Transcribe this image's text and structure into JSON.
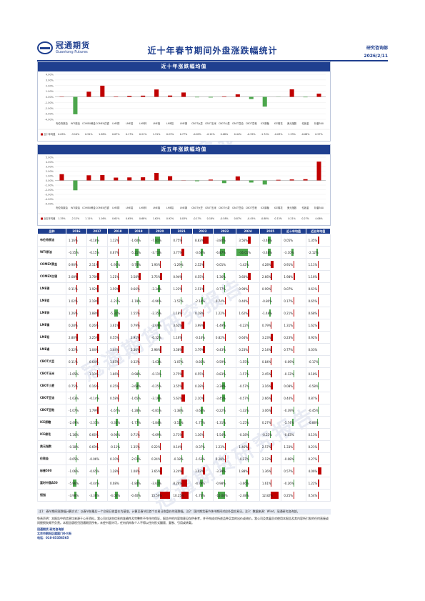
{
  "header": {
    "logo_cn": "冠通期货",
    "logo_en": "Guantong Futures",
    "title": "近十年春节期间外盘涨跌幅统计",
    "dept": "研究咨询部",
    "date": "2026/2/11"
  },
  "watermark": "冠通期货研究报告",
  "chart1": {
    "title": "近十年涨跌幅均值",
    "legend": "近十年均值"
  },
  "chart2": {
    "title": "近五年涨跌幅均值",
    "legend": "近五年均值"
  },
  "chart_data": [
    {
      "type": "bar",
      "title": "近十年涨跌幅均值",
      "ylim": [
        -4,
        4
      ],
      "yticks": [
        "4.00%",
        "3.00%",
        "2.00%",
        "1.00%",
        "0.00%",
        "-1.00%",
        "-2.00%",
        "-3.00%",
        "-4.00%"
      ],
      "categories": [
        "布伦特原油",
        "WTI原油",
        "COMEX黄金",
        "COMEX白银",
        "LME铜",
        "LME铝",
        "LME锌",
        "LME镍",
        "LME铅",
        "LME锡",
        "CBOT大豆",
        "CBOT玉米",
        "CBOT小麦",
        "CBOT豆油",
        "CBOT豆粕",
        "ICE原糖",
        "ICE棉花",
        "美元指数",
        "伦敦金",
        "标普500"
      ],
      "value_labels": [
        "0.05%",
        "-3.10%",
        "0.91%",
        "1.98%",
        "0.07%",
        "0.17%",
        "0.21%",
        "1.31%",
        "0.23%",
        "0.77%",
        "-0.09%",
        "-0.12%",
        "0.08%",
        "0.44%",
        "-0.39%",
        "-1.74%",
        "-0.03%",
        "1.33%",
        "-0.08%",
        "0.57%"
      ],
      "series": [
        {
          "name": "近十年均值",
          "values": [
            0.05,
            -3.1,
            0.91,
            1.98,
            0.07,
            0.17,
            0.21,
            1.31,
            0.23,
            0.77,
            -0.09,
            -0.12,
            0.08,
            0.44,
            -0.39,
            -1.74,
            -0.03,
            1.33,
            -0.08,
            0.57
          ]
        }
      ]
    },
    {
      "type": "bar",
      "title": "近五年涨跌幅均值",
      "ylim": [
        -5,
        5
      ],
      "yticks": [
        "5.00%",
        "4.00%",
        "3.00%",
        "2.00%",
        "1.00%",
        "0.00%",
        "-1.00%",
        "-2.00%",
        "-3.00%",
        "-4.00%",
        "-5.00%"
      ],
      "categories": [
        "布伦特原油",
        "WTI原油",
        "COMEX黄金",
        "COMEX白银",
        "LME铜",
        "LME铝",
        "LME锌",
        "LME镍",
        "LME铅",
        "LME锡",
        "CBOT大豆",
        "CBOT玉米",
        "CBOT小麦",
        "CBOT豆油",
        "CBOT豆粕",
        "ICE原糖",
        "ICE棉花",
        "美元指数",
        "伦敦金",
        "标普500"
      ],
      "value_labels": [
        "1.35%",
        "-2.12%",
        "1.11%",
        "1.16%",
        "0.61%",
        "0.65%",
        "0.68%",
        "1.62%",
        "0.92%",
        "0.03%",
        "-0.17%",
        "0.18%",
        "-0.58%",
        "0.87%",
        "-0.45%",
        "-0.88%",
        "0.13%",
        "0.21%",
        "0.27%",
        "4.06%"
      ],
      "series": [
        {
          "name": "近五年均值",
          "values": [
            1.35,
            -2.12,
            1.11,
            1.16,
            0.61,
            0.65,
            0.68,
            1.62,
            0.92,
            0.03,
            -0.17,
            0.18,
            -0.58,
            0.87,
            -0.45,
            -0.88,
            0.13,
            0.21,
            0.27,
            4.06
          ]
        }
      ]
    }
  ],
  "table": {
    "headers": [
      "品种",
      "2016",
      "2017",
      "2018",
      "2019",
      "2020",
      "2021",
      "2022",
      "2023",
      "2024",
      "2025",
      "近十年均值",
      "近五年均值"
    ],
    "rows": [
      {
        "label": "布伦特原油",
        "values": [
          1.16,
          -0.18,
          1.12,
          -1.6,
          -7.81,
          0.75,
          8.83,
          -3.8,
          3.56,
          -3.46,
          0.05,
          1.35
        ]
      },
      {
        "label": "WTI原油",
        "values": [
          -0.35,
          -0.15,
          0.67,
          -5.21,
          -3.71,
          3.77,
          -3.6,
          -6.87,
          -16.01,
          -3.46,
          -3.1,
          -2.12
        ]
      },
      {
        "label": "COMEX黄金",
        "values": [
          0.9,
          2.11,
          -1.93,
          -3.76,
          1.93,
          -1.29,
          2.52,
          -0.01,
          -1.42,
          4.28,
          0.91,
          1.11
        ]
      },
      {
        "label": "COMEX白银",
        "values": [
          2.08,
          3.78,
          1.21,
          3.58,
          3.75,
          0.94,
          0.55,
          -1.36,
          3.6,
          2.66,
          1.98,
          1.16
        ]
      },
      {
        "label": "LME铜",
        "values": [
          0.11,
          1.92,
          3.59,
          0.66,
          -3.34,
          1.22,
          2.51,
          -0.77,
          0.99,
          0.99,
          0.07,
          0.61
        ]
      },
      {
        "label": "LME铝",
        "values": [
          1.02,
          2.19,
          -1.21,
          -1.19,
          -0.96,
          -1.57,
          -2.1,
          0.74,
          0.44,
          -0.8,
          0.17,
          0.65
        ]
      },
      {
        "label": "LME锌",
        "values": [
          1.26,
          1.88,
          -5.31,
          1.55,
          -2.35,
          1.18,
          0.18,
          1.22,
          1.62,
          -1.48,
          0.21,
          0.68
        ]
      },
      {
        "label": "LME镍",
        "values": [
          0.28,
          0.26,
          3.61,
          0.79,
          -2.69,
          3.62,
          3.99,
          -1.49,
          -0.22,
          0.79,
          1.31,
          1.62
        ]
      },
      {
        "label": "LME铅",
        "values": [
          2.8,
          3.25,
          0.55,
          2.91,
          -0.32,
          1.16,
          -0.16,
          0.82,
          0.64,
          3.23,
          0.23,
          0.92
        ]
      },
      {
        "label": "LME锡",
        "values": [
          0.32,
          1.04,
          1.44,
          2.3,
          2.98,
          3.58,
          3.79,
          -0.43,
          0.23,
          2.14,
          0.77,
          0.03
        ]
      },
      {
        "label": "CBOT大豆",
        "values": [
          0.11,
          0.64,
          1.65,
          0.32,
          -1.63,
          -1.07,
          -0.85,
          -0.59,
          -1.55,
          0.84,
          -0.09,
          -0.17
        ]
      },
      {
        "label": "CBOT玉米",
        "values": [
          -1.65,
          1.1,
          1.66,
          -0.98,
          -0.11,
          2.75,
          0.55,
          -0.83,
          -1.57,
          2.45,
          -0.12,
          0.18
        ]
      },
      {
        "label": "CBOT小麦",
        "values": [
          0.75,
          0.16,
          0.35,
          -3.68,
          -0.25,
          3.55,
          0.28,
          -3.38,
          -0.57,
          3.16,
          0.08,
          -0.58
        ]
      },
      {
        "label": "CBOT豆油",
        "values": [
          -1.63,
          -0.14,
          0.58,
          -1.65,
          -3.19,
          5.63,
          2.1,
          -3.45,
          -0.57,
          2.66,
          0.44,
          0.87
        ]
      },
      {
        "label": "CBOT豆粕",
        "values": [
          -1.07,
          1.79,
          -1.67,
          -1.28,
          -0.81,
          -1.38,
          -3.63,
          -0.22,
          -1.32,
          3.06,
          -0.39,
          -0.45
        ]
      },
      {
        "label": "ICE原糖",
        "values": [
          -2.49,
          -2.31,
          -3.35,
          -1.77,
          -1.84,
          -3.51,
          -1.77,
          -1.31,
          -1.25,
          0.27,
          -1.74,
          -0.88
        ]
      },
      {
        "label": "ICE棉花",
        "values": [
          -1.16,
          0.66,
          -0.9,
          0.71,
          -0.69,
          2.71,
          1.16,
          -1.54,
          -0.18,
          -0.23,
          -0.03,
          0.13
        ]
      },
      {
        "label": "美元指数",
        "values": [
          -0.18,
          0.69,
          -0.11,
          1.35,
          0.22,
          0.14,
          -0.37,
          1.23,
          1.46,
          2.57,
          1.33,
          0.21
        ]
      },
      {
        "label": "伦敦金",
        "values": [
          -0.65,
          -0.06,
          0.1,
          -2.01,
          0.24,
          -0.18,
          -1.63,
          0.28,
          -0.37,
          2.12,
          -0.08,
          0.27
        ]
      },
      {
        "label": "标普500",
        "values": [
          -1.06,
          -0.65,
          1.28,
          1.08,
          3.65,
          3.24,
          3.03,
          -3.39,
          1.88,
          1.36,
          0.57,
          4.06
        ]
      },
      {
        "label": "富时中国A50",
        "values": [
          -5.96,
          -0.44,
          0.08,
          -1.8,
          -3.61,
          8.26,
          -4.79,
          -0.98,
          -3.66,
          1.61,
          -0.26,
          1.22
        ]
      },
      {
        "label": "恒指",
        "values": [
          -3.98,
          -3.36,
          -4.0,
          -0.4,
          15.59,
          10.25,
          -1.7,
          -10.08,
          -2.48,
          12.82,
          0.25,
          0.54
        ]
      }
    ]
  },
  "notes": {
    "note1": "注1：春节期间涨跌幅计算方式：以春节前最后一个交易日收盘价为基准，计算至春节后首个交易日收盘价的涨跌幅。注2：国内期货春节休市期间对应外盘交易日。注3：数据来源：Wind、冠通研究咨询部。",
    "disclaimer": "免责声明：本报告中的信息均来源于公开资料，我公司对这些信息的准确性及完整性不作任何保证，报告中的内容和意见仅供参考，并不构成对所述品种买卖的出价或询价。我公司及其雇员对使用本报告及其内容所引发的任何直接或间接损失概不负责。本报告版权归冠通期货所有，未经书面许可，任何机构和个人不得以任何形式翻版、复制、引用或转载。",
    "contact_title": "冠通期货 研究咨询部",
    "contact_addr": "北京市朝阳区建国门外大街",
    "contact_tel": "电话：010-85356565"
  }
}
